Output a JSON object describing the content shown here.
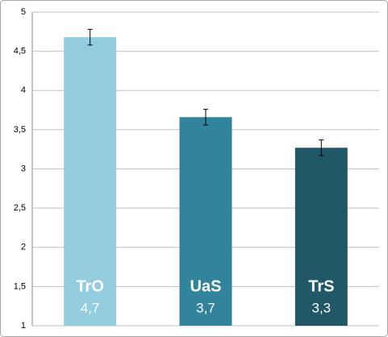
{
  "chart_data": {
    "type": "bar",
    "categories": [
      "TrO",
      "UaS",
      "TrS"
    ],
    "values": [
      4.68,
      3.66,
      3.27
    ],
    "value_labels": [
      "4,7",
      "3,7",
      "3,3"
    ],
    "errors": [
      0.1,
      0.1,
      0.1
    ],
    "colors": [
      "#93cddf",
      "#31849b",
      "#215867"
    ],
    "ylim": [
      1,
      5
    ],
    "yticks": [
      1,
      {
        "value": 1.5,
        "label": "1,5"
      },
      2,
      {
        "value": 2.5,
        "label": "2,5"
      },
      3,
      {
        "value": 3.5,
        "label": "3,5"
      },
      4,
      {
        "value": 4.5,
        "label": "4,5"
      },
      5
    ],
    "grid": true
  }
}
